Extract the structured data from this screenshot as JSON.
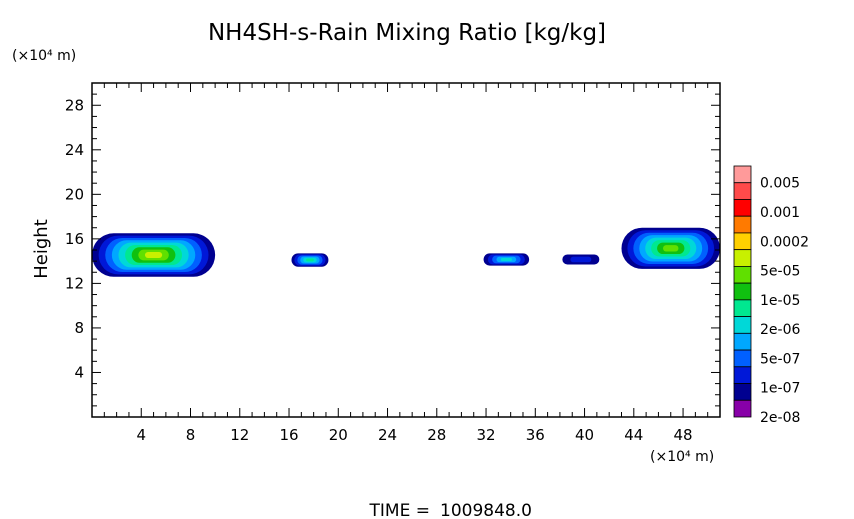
{
  "chart_data": {
    "type": "heatmap",
    "title": "NH4SH-s-Rain Mixing Ratio [kg/kg]",
    "ylabel": "Height",
    "yunit": "(×10⁴ m)",
    "xunit": "(×10⁴ m)",
    "xlim": [
      0,
      51
    ],
    "ylim": [
      0,
      30
    ],
    "x_ticks": [
      "4",
      "8",
      "12",
      "16",
      "20",
      "24",
      "28",
      "32",
      "36",
      "40",
      "44",
      "48"
    ],
    "x_tick_values": [
      4,
      8,
      12,
      16,
      20,
      24,
      28,
      32,
      36,
      40,
      44,
      48
    ],
    "y_ticks": [
      "4",
      "8",
      "12",
      "16",
      "20",
      "24",
      "28"
    ],
    "y_tick_values": [
      4,
      8,
      12,
      16,
      20,
      24,
      28
    ],
    "colorbar": {
      "labels": [
        "0.005",
        "0.001",
        "0.0002",
        "5e-05",
        "1e-05",
        "2e-06",
        "5e-07",
        "1e-07",
        "2e-08"
      ],
      "colors": [
        "#ff9a9a",
        "#ff4a4a",
        "#ff0000",
        "#ff7a00",
        "#ffd000",
        "#c8f000",
        "#60e000",
        "#10c010",
        "#00e890",
        "#00d8d8",
        "#00a8ff",
        "#0060ff",
        "#0018d8",
        "#000090",
        "#8800a8"
      ]
    },
    "regions": [
      {
        "x": [
          0,
          10
        ],
        "y": [
          12.6,
          16.5
        ],
        "peak_level": 5
      },
      {
        "x": [
          16.2,
          19.2
        ],
        "y": [
          13.5,
          14.7
        ],
        "peak_level": 8
      },
      {
        "x": [
          31.8,
          35.5
        ],
        "y": [
          13.6,
          14.7
        ],
        "peak_level": 9
      },
      {
        "x": [
          38.2,
          41.2
        ],
        "y": [
          13.7,
          14.6
        ],
        "peak_level": 12
      },
      {
        "x": [
          43,
          51
        ],
        "y": [
          13.3,
          17
        ],
        "peak_level": 6
      }
    ],
    "time_label": "TIME =",
    "time_value": "1009848.0"
  }
}
